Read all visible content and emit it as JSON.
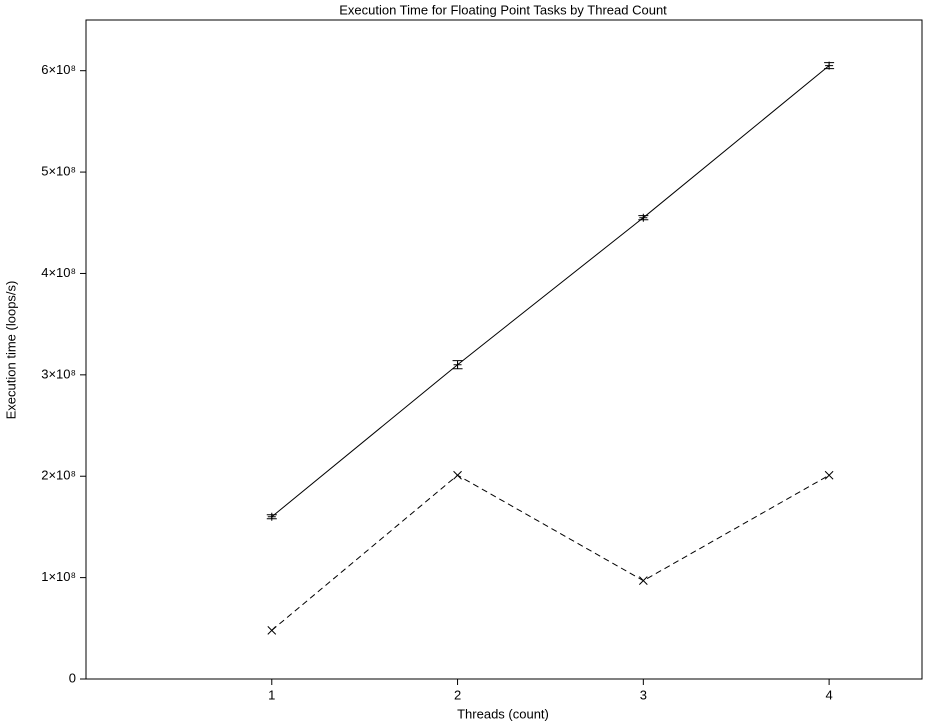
{
  "chart_data": {
    "type": "line",
    "title": "Execution Time for Floating Point Tasks by Thread Count",
    "x_label": "Threads (count)",
    "y_label": "Execution time (loops/s)",
    "x": [
      1,
      2,
      3,
      4
    ],
    "xlim": [
      0,
      4.5
    ],
    "xticks": [
      1,
      2,
      3,
      4
    ],
    "ylim": [
      0,
      650000000
    ],
    "yticks": [
      0,
      {
        "value": 100000000,
        "label": "1×10⁸"
      },
      {
        "value": 200000000,
        "label": "2×10⁸"
      },
      {
        "value": 300000000,
        "label": "3×10⁸"
      },
      {
        "value": 400000000,
        "label": "4×10⁸"
      },
      {
        "value": 500000000,
        "label": "5×10⁸"
      },
      {
        "value": 600000000,
        "label": "6×10⁸"
      }
    ],
    "series": [
      {
        "color": "#000000",
        "dashed": false,
        "marker": "+",
        "values": [
          160000000,
          310000000,
          455000000,
          605000000
        ],
        "errors": [
          2000000,
          4000000,
          2000000,
          3000000
        ]
      },
      {
        "color": "#000000",
        "dashed": true,
        "marker": "x",
        "values": [
          48000000,
          201000000,
          97000000,
          201000000
        ]
      }
    ]
  }
}
